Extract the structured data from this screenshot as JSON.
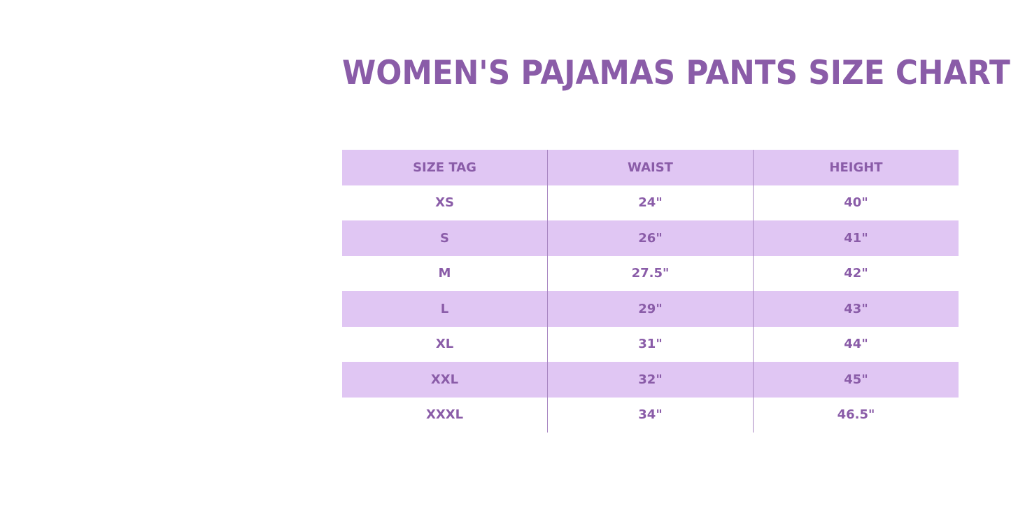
{
  "title": "WOMEN'S PAJAMAS PANTS SIZE CHART",
  "colors": {
    "accent": "#8a5ca8",
    "band": "#e0c6f3",
    "divider": "#a886c2"
  },
  "table": {
    "headers": [
      "SIZE TAG",
      "WAIST",
      "HEIGHT"
    ],
    "rows": [
      [
        "XS",
        "24\"",
        "40\""
      ],
      [
        "S",
        "26\"",
        "41\""
      ],
      [
        "M",
        "27.5\"",
        "42\""
      ],
      [
        "L",
        "29\"",
        "43\""
      ],
      [
        "XL",
        "31\"",
        "44\""
      ],
      [
        "XXL",
        "32\"",
        "45\""
      ],
      [
        "XXXL",
        "34\"",
        "46.5\""
      ]
    ]
  }
}
